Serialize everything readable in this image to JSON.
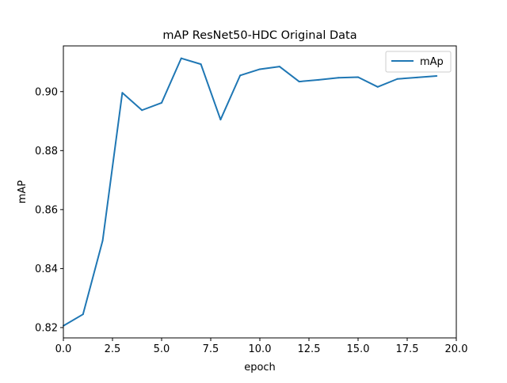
{
  "chart_data": {
    "type": "line",
    "title": "mAP ResNet50-HDC Original Data",
    "xlabel": "epoch",
    "ylabel": "mAP",
    "xlim": [
      0,
      20
    ],
    "ylim": [
      0.8165,
      0.9155
    ],
    "grid": false,
    "legend_position": "top-right",
    "x_ticks": [
      0,
      2.5,
      5,
      7.5,
      10,
      12.5,
      15,
      17.5,
      20
    ],
    "x_tick_labels": [
      "0.0",
      "2.5",
      "5.0",
      "7.5",
      "10.0",
      "12.5",
      "15.0",
      "17.5",
      "20.0"
    ],
    "y_ticks": [
      0.82,
      0.84,
      0.86,
      0.88,
      0.9
    ],
    "y_tick_labels": [
      "0.82",
      "0.84",
      "0.86",
      "0.88",
      "0.90"
    ],
    "series": [
      {
        "name": "mAp",
        "color": "#1f77b4",
        "x": [
          0,
          1,
          2,
          3,
          4,
          5,
          6,
          7,
          8,
          9,
          10,
          11,
          12,
          13,
          14,
          15,
          16,
          17,
          18,
          19
        ],
        "values": [
          0.8206,
          0.8245,
          0.8495,
          0.8996,
          0.8937,
          0.8962,
          0.9113,
          0.9093,
          0.8905,
          0.9055,
          0.9076,
          0.9085,
          0.9034,
          0.904,
          0.9047,
          0.9049,
          0.9016,
          0.9043,
          0.9048,
          0.9053
        ]
      }
    ]
  }
}
